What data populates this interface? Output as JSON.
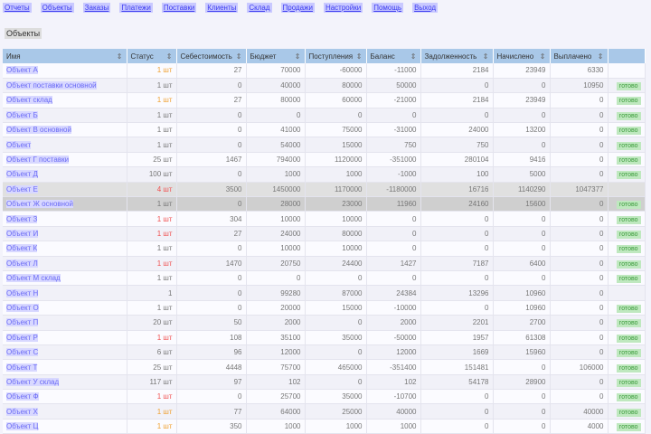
{
  "nav": [
    "Отчеты",
    "Объекты",
    "Заказы",
    "Платежи",
    "Поставки",
    "Клиенты",
    "Склад",
    "Продажи",
    "Настройки",
    "Помощь",
    "Выход"
  ],
  "page_title": "Объекты",
  "columns": [
    "Имя",
    "Статус",
    "Себестоимость",
    "Бюджет",
    "Поступления",
    "Баланс",
    "Задолженность",
    "Начислено",
    "Выплачено",
    ""
  ],
  "badge_label": "готово",
  "colors": {
    "accent": "#3a3af0",
    "header": "#a9c8e8",
    "orange": "#f0a030",
    "red": "#f05050",
    "badge": "#bfe8bf"
  },
  "rows": [
    {
      "name": "Объект А",
      "status": "1 шт",
      "tone": "orange",
      "v": [
        "27",
        "70000",
        "-60000",
        "-11000",
        "2184",
        "23949",
        "6330"
      ],
      "badge": false,
      "cls": ""
    },
    {
      "name": "Объект поставки основной",
      "status": "1 шт",
      "tone": "",
      "v": [
        "0",
        "40000",
        "80000",
        "50000",
        "0",
        "0",
        "10950"
      ],
      "badge": true,
      "cls": ""
    },
    {
      "name": "Объект склад",
      "status": "1 шт",
      "tone": "orange",
      "v": [
        "27",
        "80000",
        "60000",
        "-21000",
        "2184",
        "23949",
        "0"
      ],
      "badge": true,
      "cls": ""
    },
    {
      "name": "Объект Б",
      "status": "1 шт",
      "tone": "",
      "v": [
        "0",
        "0",
        "0",
        "0",
        "0",
        "0",
        "0"
      ],
      "badge": true,
      "cls": ""
    },
    {
      "name": "Объект В основной",
      "status": "1 шт",
      "tone": "",
      "v": [
        "0",
        "41000",
        "75000",
        "-31000",
        "24000",
        "13200",
        "0"
      ],
      "badge": true,
      "cls": ""
    },
    {
      "name": "Объект",
      "status": "1 шт",
      "tone": "",
      "v": [
        "0",
        "54000",
        "15000",
        "750",
        "750",
        "0",
        "0"
      ],
      "badge": true,
      "cls": ""
    },
    {
      "name": "Объект Г поставки",
      "status": "25 шт",
      "tone": "",
      "v": [
        "1467",
        "794000",
        "1120000",
        "-351000",
        "280104",
        "9416",
        "0"
      ],
      "badge": true,
      "cls": ""
    },
    {
      "name": "Объект Д",
      "status": "100 шт",
      "tone": "",
      "v": [
        "0",
        "1000",
        "1000",
        "-1000",
        "100",
        "5000",
        "0"
      ],
      "badge": true,
      "cls": ""
    },
    {
      "name": "Объект Е",
      "status": "4 шт",
      "tone": "red",
      "v": [
        "3500",
        "1450000",
        "1170000",
        "-1180000",
        "16716",
        "1140290",
        "1047377"
      ],
      "badge": false,
      "cls": "gray"
    },
    {
      "name": "Объект Ж основной",
      "status": "1 шт",
      "tone": "",
      "v": [
        "0",
        "28000",
        "23000",
        "11960",
        "24160",
        "15600",
        "0"
      ],
      "badge": true,
      "cls": "hl"
    },
    {
      "name": "Объект З",
      "status": "1 шт",
      "tone": "red",
      "v": [
        "304",
        "10000",
        "10000",
        "0",
        "0",
        "0",
        "0"
      ],
      "badge": true,
      "cls": ""
    },
    {
      "name": "Объект И",
      "status": "1 шт",
      "tone": "red",
      "v": [
        "27",
        "24000",
        "80000",
        "0",
        "0",
        "0",
        "0"
      ],
      "badge": true,
      "cls": ""
    },
    {
      "name": "Объект К",
      "status": "1 шт",
      "tone": "",
      "v": [
        "0",
        "10000",
        "10000",
        "0",
        "0",
        "0",
        "0"
      ],
      "badge": true,
      "cls": ""
    },
    {
      "name": "Объект Л",
      "status": "1 шт",
      "tone": "red",
      "v": [
        "1470",
        "20750",
        "24400",
        "1427",
        "7187",
        "6400",
        "0"
      ],
      "badge": true,
      "cls": ""
    },
    {
      "name": "Объект М склад",
      "status": "1 шт",
      "tone": "",
      "v": [
        "0",
        "0",
        "0",
        "0",
        "0",
        "0",
        "0"
      ],
      "badge": true,
      "cls": ""
    },
    {
      "name": "Объект Н",
      "status": "1",
      "tone": "",
      "v": [
        "0",
        "99280",
        "87000",
        "24384",
        "13296",
        "10960",
        "0"
      ],
      "badge": false,
      "cls": ""
    },
    {
      "name": "Объект О",
      "status": "1 шт",
      "tone": "",
      "v": [
        "0",
        "20000",
        "15000",
        "-10000",
        "0",
        "10960",
        "0"
      ],
      "badge": true,
      "cls": ""
    },
    {
      "name": "Объект П",
      "status": "20 шт",
      "tone": "",
      "v": [
        "50",
        "2000",
        "0",
        "2000",
        "2201",
        "2700",
        "0"
      ],
      "badge": true,
      "cls": ""
    },
    {
      "name": "Объект Р",
      "status": "1 шт",
      "tone": "red",
      "v": [
        "108",
        "35100",
        "35000",
        "-50000",
        "1957",
        "61308",
        "0"
      ],
      "badge": true,
      "cls": ""
    },
    {
      "name": "Объект С",
      "status": "6 шт",
      "tone": "",
      "v": [
        "96",
        "12000",
        "0",
        "12000",
        "1669",
        "15960",
        "0"
      ],
      "badge": true,
      "cls": ""
    },
    {
      "name": "Объект Т",
      "status": "25 шт",
      "tone": "",
      "v": [
        "4448",
        "75700",
        "465000",
        "-351400",
        "151481",
        "0",
        "106000"
      ],
      "badge": true,
      "cls": ""
    },
    {
      "name": "Объект У склад",
      "status": "117 шт",
      "tone": "",
      "v": [
        "97",
        "102",
        "0",
        "102",
        "54178",
        "28900",
        "0"
      ],
      "badge": true,
      "cls": ""
    },
    {
      "name": "Объект Ф",
      "status": "1 шт",
      "tone": "red",
      "v": [
        "0",
        "25700",
        "35000",
        "-10700",
        "0",
        "0",
        "0"
      ],
      "badge": true,
      "cls": ""
    },
    {
      "name": "Объект Х",
      "status": "1 шт",
      "tone": "orange",
      "v": [
        "77",
        "64000",
        "25000",
        "40000",
        "0",
        "0",
        "40000"
      ],
      "badge": true,
      "cls": ""
    },
    {
      "name": "Объект Ц",
      "status": "1 шт",
      "tone": "orange",
      "v": [
        "350",
        "1000",
        "1000",
        "1000",
        "0",
        "0",
        "4000"
      ],
      "badge": true,
      "cls": ""
    }
  ]
}
